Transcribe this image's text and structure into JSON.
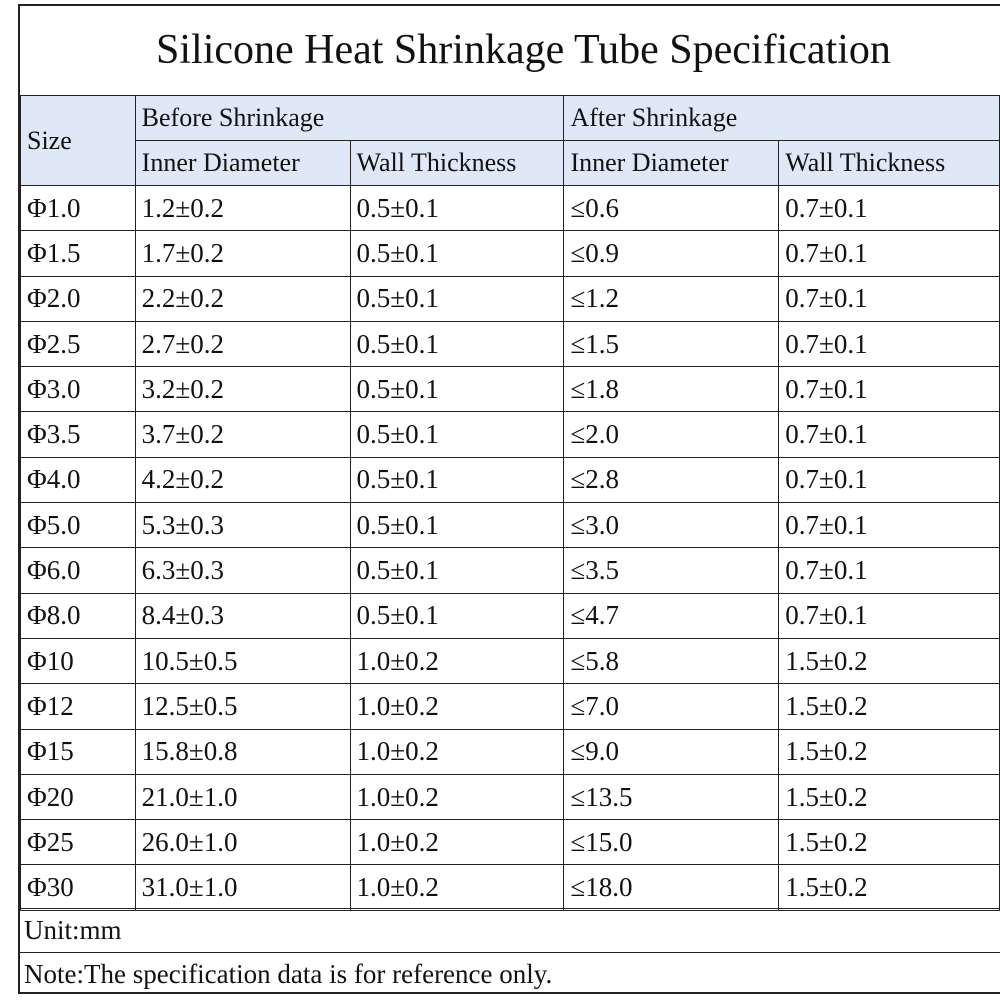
{
  "title": "Silicone Heat Shrinkage Tube Specification",
  "header": {
    "size": "Size",
    "before": "Before Shrinkage",
    "after": "After Shrinkage",
    "inner_diameter": "Inner Diameter",
    "wall_thickness": "Wall Thickness"
  },
  "rows": [
    {
      "size": "Φ1.0",
      "before_id": "1.2±0.2",
      "before_wall": "0.5±0.1",
      "after_id": "≤0.6",
      "after_wall": "0.7±0.1"
    },
    {
      "size": "Φ1.5",
      "before_id": "1.7±0.2",
      "before_wall": "0.5±0.1",
      "after_id": "≤0.9",
      "after_wall": "0.7±0.1"
    },
    {
      "size": "Φ2.0",
      "before_id": "2.2±0.2",
      "before_wall": "0.5±0.1",
      "after_id": "≤1.2",
      "after_wall": "0.7±0.1"
    },
    {
      "size": "Φ2.5",
      "before_id": "2.7±0.2",
      "before_wall": "0.5±0.1",
      "after_id": "≤1.5",
      "after_wall": "0.7±0.1"
    },
    {
      "size": "Φ3.0",
      "before_id": "3.2±0.2",
      "before_wall": "0.5±0.1",
      "after_id": "≤1.8",
      "after_wall": "0.7±0.1"
    },
    {
      "size": "Φ3.5",
      "before_id": "3.7±0.2",
      "before_wall": "0.5±0.1",
      "after_id": "≤2.0",
      "after_wall": "0.7±0.1"
    },
    {
      "size": "Φ4.0",
      "before_id": "4.2±0.2",
      "before_wall": "0.5±0.1",
      "after_id": "≤2.8",
      "after_wall": "0.7±0.1"
    },
    {
      "size": "Φ5.0",
      "before_id": "5.3±0.3",
      "before_wall": "0.5±0.1",
      "after_id": "≤3.0",
      "after_wall": "0.7±0.1"
    },
    {
      "size": "Φ6.0",
      "before_id": "6.3±0.3",
      "before_wall": "0.5±0.1",
      "after_id": "≤3.5",
      "after_wall": "0.7±0.1"
    },
    {
      "size": "Φ8.0",
      "before_id": "8.4±0.3",
      "before_wall": "0.5±0.1",
      "after_id": "≤4.7",
      "after_wall": "0.7±0.1"
    },
    {
      "size": "Φ10",
      "before_id": "10.5±0.5",
      "before_wall": "1.0±0.2",
      "after_id": "≤5.8",
      "after_wall": "1.5±0.2"
    },
    {
      "size": "Φ12",
      "before_id": "12.5±0.5",
      "before_wall": "1.0±0.2",
      "after_id": "≤7.0",
      "after_wall": "1.5±0.2"
    },
    {
      "size": "Φ15",
      "before_id": "15.8±0.8",
      "before_wall": "1.0±0.2",
      "after_id": "≤9.0",
      "after_wall": "1.5±0.2"
    },
    {
      "size": "Φ20",
      "before_id": "21.0±1.0",
      "before_wall": "1.0±0.2",
      "after_id": "≤13.5",
      "after_wall": "1.5±0.2"
    },
    {
      "size": "Φ25",
      "before_id": "26.0±1.0",
      "before_wall": "1.0±0.2",
      "after_id": "≤15.0",
      "after_wall": "1.5±0.2"
    },
    {
      "size": "Φ30",
      "before_id": "31.0±1.0",
      "before_wall": "1.0±0.2",
      "after_id": "≤18.0",
      "after_wall": "1.5±0.2"
    }
  ],
  "unit": "Unit:mm",
  "note": "Note:The specification data is for reference only.",
  "colors": {
    "header_bg": "#dfe8f6",
    "border": "#222222"
  }
}
